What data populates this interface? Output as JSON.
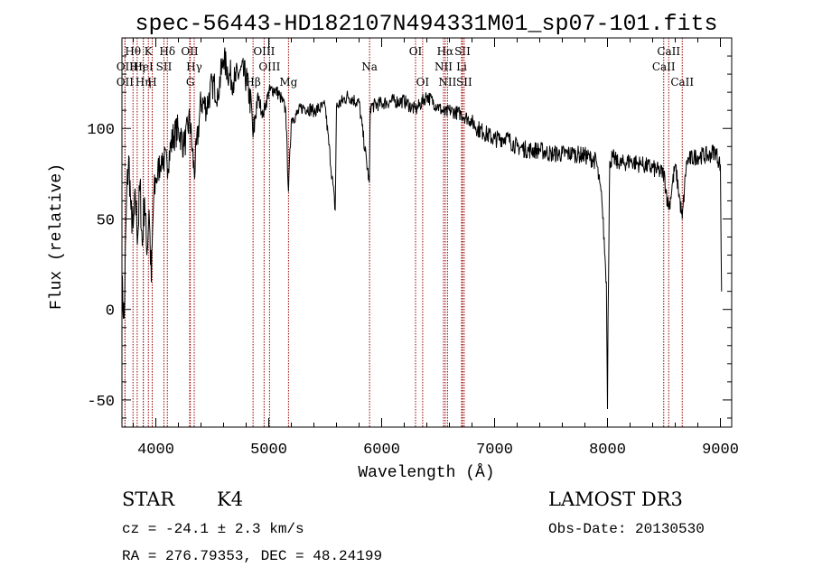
{
  "colors": {
    "axis": "#000000",
    "spectrum": "#000000",
    "lines": "#990000",
    "background": "#ffffff"
  },
  "footer": {
    "class_label": "STAR",
    "subclass": "K4",
    "survey": "LAMOST DR3",
    "cz_text": "cz = -24.1 ± 2.3 km/s",
    "obs_date": "Obs-Date: 20130530",
    "coords": "RA = 276.79353, DEC =  48.24199"
  },
  "chart_data": {
    "type": "line",
    "title": "spec-56443-HD182107N494331M01_sp07-101.fits",
    "xlabel": "Wavelength (Å)",
    "ylabel": "Flux (relative)",
    "xlim": [
      3700,
      9100
    ],
    "ylim": [
      -65,
      150
    ],
    "xticks": [
      4000,
      5000,
      6000,
      7000,
      8000,
      9000
    ],
    "yticks": [
      -50,
      0,
      50,
      100
    ],
    "series": [
      {
        "name": "flux",
        "x": [
          3700,
          3720,
          3740,
          3760,
          3780,
          3800,
          3820,
          3840,
          3860,
          3880,
          3900,
          3920,
          3940,
          3960,
          3980,
          4000,
          4050,
          4100,
          4150,
          4200,
          4250,
          4300,
          4340,
          4400,
          4450,
          4500,
          4550,
          4600,
          4650,
          4700,
          4750,
          4800,
          4850,
          4861,
          4900,
          4950,
          5000,
          5050,
          5100,
          5150,
          5175,
          5200,
          5250,
          5300,
          5400,
          5500,
          5589,
          5600,
          5700,
          5800,
          5890,
          5900,
          6000,
          6100,
          6200,
          6300,
          6400,
          6500,
          6563,
          6600,
          6700,
          6800,
          6850,
          6900,
          7000,
          7100,
          7200,
          7300,
          7400,
          7500,
          7600,
          7700,
          7800,
          7900,
          7950,
          7990,
          8000,
          8005,
          8020,
          8050,
          8100,
          8200,
          8300,
          8400,
          8500,
          8542,
          8600,
          8662,
          8700,
          8800,
          8900,
          8950,
          9000,
          9010
        ],
        "y": [
          12,
          -5,
          60,
          85,
          55,
          45,
          60,
          40,
          70,
          35,
          62,
          30,
          55,
          15,
          60,
          70,
          85,
          80,
          95,
          100,
          90,
          105,
          75,
          115,
          112,
          125,
          120,
          138,
          130,
          126,
          132,
          128,
          110,
          95,
          118,
          108,
          120,
          122,
          118,
          110,
          65,
          105,
          108,
          112,
          110,
          112,
          55,
          112,
          118,
          114,
          70,
          112,
          114,
          115,
          115,
          110,
          118,
          112,
          108,
          110,
          108,
          104,
          100,
          98,
          94,
          95,
          90,
          88,
          88,
          86,
          86,
          86,
          85,
          82,
          60,
          15,
          -55,
          -5,
          82,
          84,
          80,
          82,
          80,
          78,
          75,
          55,
          80,
          50,
          82,
          85,
          85,
          88,
          80,
          10
        ]
      }
    ],
    "line_markers": [
      {
        "label": "Hθ",
        "x": 3798,
        "row": 1
      },
      {
        "label": "OII",
        "x": 3727,
        "row": 2
      },
      {
        "label": "OII",
        "x": 3727,
        "row": 3
      },
      {
        "label": "Hη",
        "x": 3835,
        "row": 2
      },
      {
        "label": "HeI",
        "x": 3889,
        "row": 2
      },
      {
        "label": "Hη",
        "x": 3889,
        "row": 3
      },
      {
        "label": "K",
        "x": 3934,
        "row": 1
      },
      {
        "label": "H",
        "x": 3968,
        "row": 3
      },
      {
        "label": "SII",
        "x": 4072,
        "row": 2
      },
      {
        "label": "Hδ",
        "x": 4102,
        "row": 1
      },
      {
        "label": "OII",
        "x": 4300,
        "row": 1
      },
      {
        "label": "Hγ",
        "x": 4340,
        "row": 2
      },
      {
        "label": "G",
        "x": 4305,
        "row": 3
      },
      {
        "label": "Hβ",
        "x": 4861,
        "row": 3
      },
      {
        "label": "OIII",
        "x": 4959,
        "row": 1
      },
      {
        "label": "OIII",
        "x": 5007,
        "row": 2
      },
      {
        "label": "Mg",
        "x": 5175,
        "row": 3
      },
      {
        "label": "Na",
        "x": 5893,
        "row": 2
      },
      {
        "label": "OI",
        "x": 6300,
        "row": 1
      },
      {
        "label": "OI",
        "x": 6363,
        "row": 3
      },
      {
        "label": "Hα",
        "x": 6563,
        "row": 1
      },
      {
        "label": "NII",
        "x": 6548,
        "row": 2
      },
      {
        "label": "NII",
        "x": 6583,
        "row": 3
      },
      {
        "label": "SII",
        "x": 6716,
        "row": 1
      },
      {
        "label": "Li",
        "x": 6708,
        "row": 2
      },
      {
        "label": "SII",
        "x": 6731,
        "row": 3
      },
      {
        "label": "CaII",
        "x": 8542,
        "row": 1
      },
      {
        "label": "CaII",
        "x": 8498,
        "row": 2
      },
      {
        "label": "CaII",
        "x": 8662,
        "row": 3
      }
    ]
  }
}
